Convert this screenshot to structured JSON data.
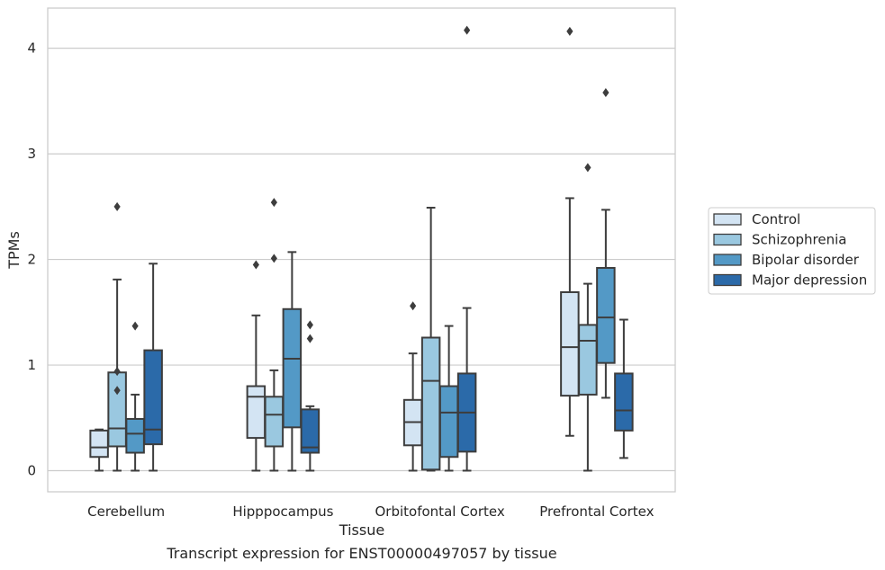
{
  "chart_data": {
    "type": "box",
    "xlabel": "Tissue",
    "ylabel": "TPMs",
    "caption": "Transcript expression for ENST00000497057 by tissue",
    "categories": [
      "Cerebellum",
      "Hipppocampus",
      "Orbitofontal Cortex",
      "Prefrontal Cortex"
    ],
    "ylim": [
      -0.2,
      4.38
    ],
    "yticks": [
      0,
      1,
      2,
      3,
      4
    ],
    "grid": "horizontal",
    "legend_position": "right",
    "series": [
      {
        "name": "Control",
        "color": "#d3e4f3",
        "boxes": [
          {
            "q1": 0.13,
            "median": 0.22,
            "q3": 0.38,
            "whisker_low": 0.0,
            "whisker_high": 0.39,
            "outliers": []
          },
          {
            "q1": 0.31,
            "median": 0.7,
            "q3": 0.8,
            "whisker_low": 0.0,
            "whisker_high": 1.47,
            "outliers": [
              1.95
            ]
          },
          {
            "q1": 0.24,
            "median": 0.46,
            "q3": 0.67,
            "whisker_low": 0.0,
            "whisker_high": 1.11,
            "outliers": [
              1.56
            ]
          },
          {
            "q1": 0.71,
            "median": 1.17,
            "q3": 1.69,
            "whisker_low": 0.33,
            "whisker_high": 2.58,
            "outliers": [
              4.16
            ]
          }
        ]
      },
      {
        "name": "Schizophrenia",
        "color": "#9ac8e0",
        "boxes": [
          {
            "q1": 0.23,
            "median": 0.4,
            "q3": 0.93,
            "whisker_low": 0.0,
            "whisker_high": 1.81,
            "outliers": [
              0.76,
              0.94,
              2.5
            ]
          },
          {
            "q1": 0.23,
            "median": 0.53,
            "q3": 0.7,
            "whisker_low": 0.0,
            "whisker_high": 0.95,
            "outliers": [
              2.01,
              2.54
            ]
          },
          {
            "q1": 0.01,
            "median": 0.85,
            "q3": 1.26,
            "whisker_low": 0.0,
            "whisker_high": 2.49,
            "outliers": []
          },
          {
            "q1": 0.72,
            "median": 1.23,
            "q3": 1.38,
            "whisker_low": 0.0,
            "whisker_high": 1.77,
            "outliers": [
              2.87
            ]
          }
        ]
      },
      {
        "name": "Bipolar disorder",
        "color": "#5399c6",
        "boxes": [
          {
            "q1": 0.17,
            "median": 0.35,
            "q3": 0.49,
            "whisker_low": 0.0,
            "whisker_high": 0.72,
            "outliers": [
              1.37
            ]
          },
          {
            "q1": 0.41,
            "median": 1.06,
            "q3": 1.53,
            "whisker_low": 0.0,
            "whisker_high": 2.07,
            "outliers": []
          },
          {
            "q1": 0.13,
            "median": 0.55,
            "q3": 0.8,
            "whisker_low": 0.0,
            "whisker_high": 1.37,
            "outliers": []
          },
          {
            "q1": 1.02,
            "median": 1.45,
            "q3": 1.92,
            "whisker_low": 0.69,
            "whisker_high": 2.47,
            "outliers": [
              3.58
            ]
          }
        ]
      },
      {
        "name": "Major depression",
        "color": "#2b6aa9",
        "boxes": [
          {
            "q1": 0.25,
            "median": 0.39,
            "q3": 1.14,
            "whisker_low": 0.0,
            "whisker_high": 1.96,
            "outliers": []
          },
          {
            "q1": 0.17,
            "median": 0.22,
            "q3": 0.58,
            "whisker_low": 0.0,
            "whisker_high": 0.61,
            "outliers": [
              1.25,
              1.38
            ]
          },
          {
            "q1": 0.18,
            "median": 0.55,
            "q3": 0.92,
            "whisker_low": 0.0,
            "whisker_high": 1.54,
            "outliers": [
              4.17
            ]
          },
          {
            "q1": 0.38,
            "median": 0.57,
            "q3": 0.92,
            "whisker_low": 0.12,
            "whisker_high": 1.43,
            "outliers": []
          }
        ]
      }
    ]
  }
}
